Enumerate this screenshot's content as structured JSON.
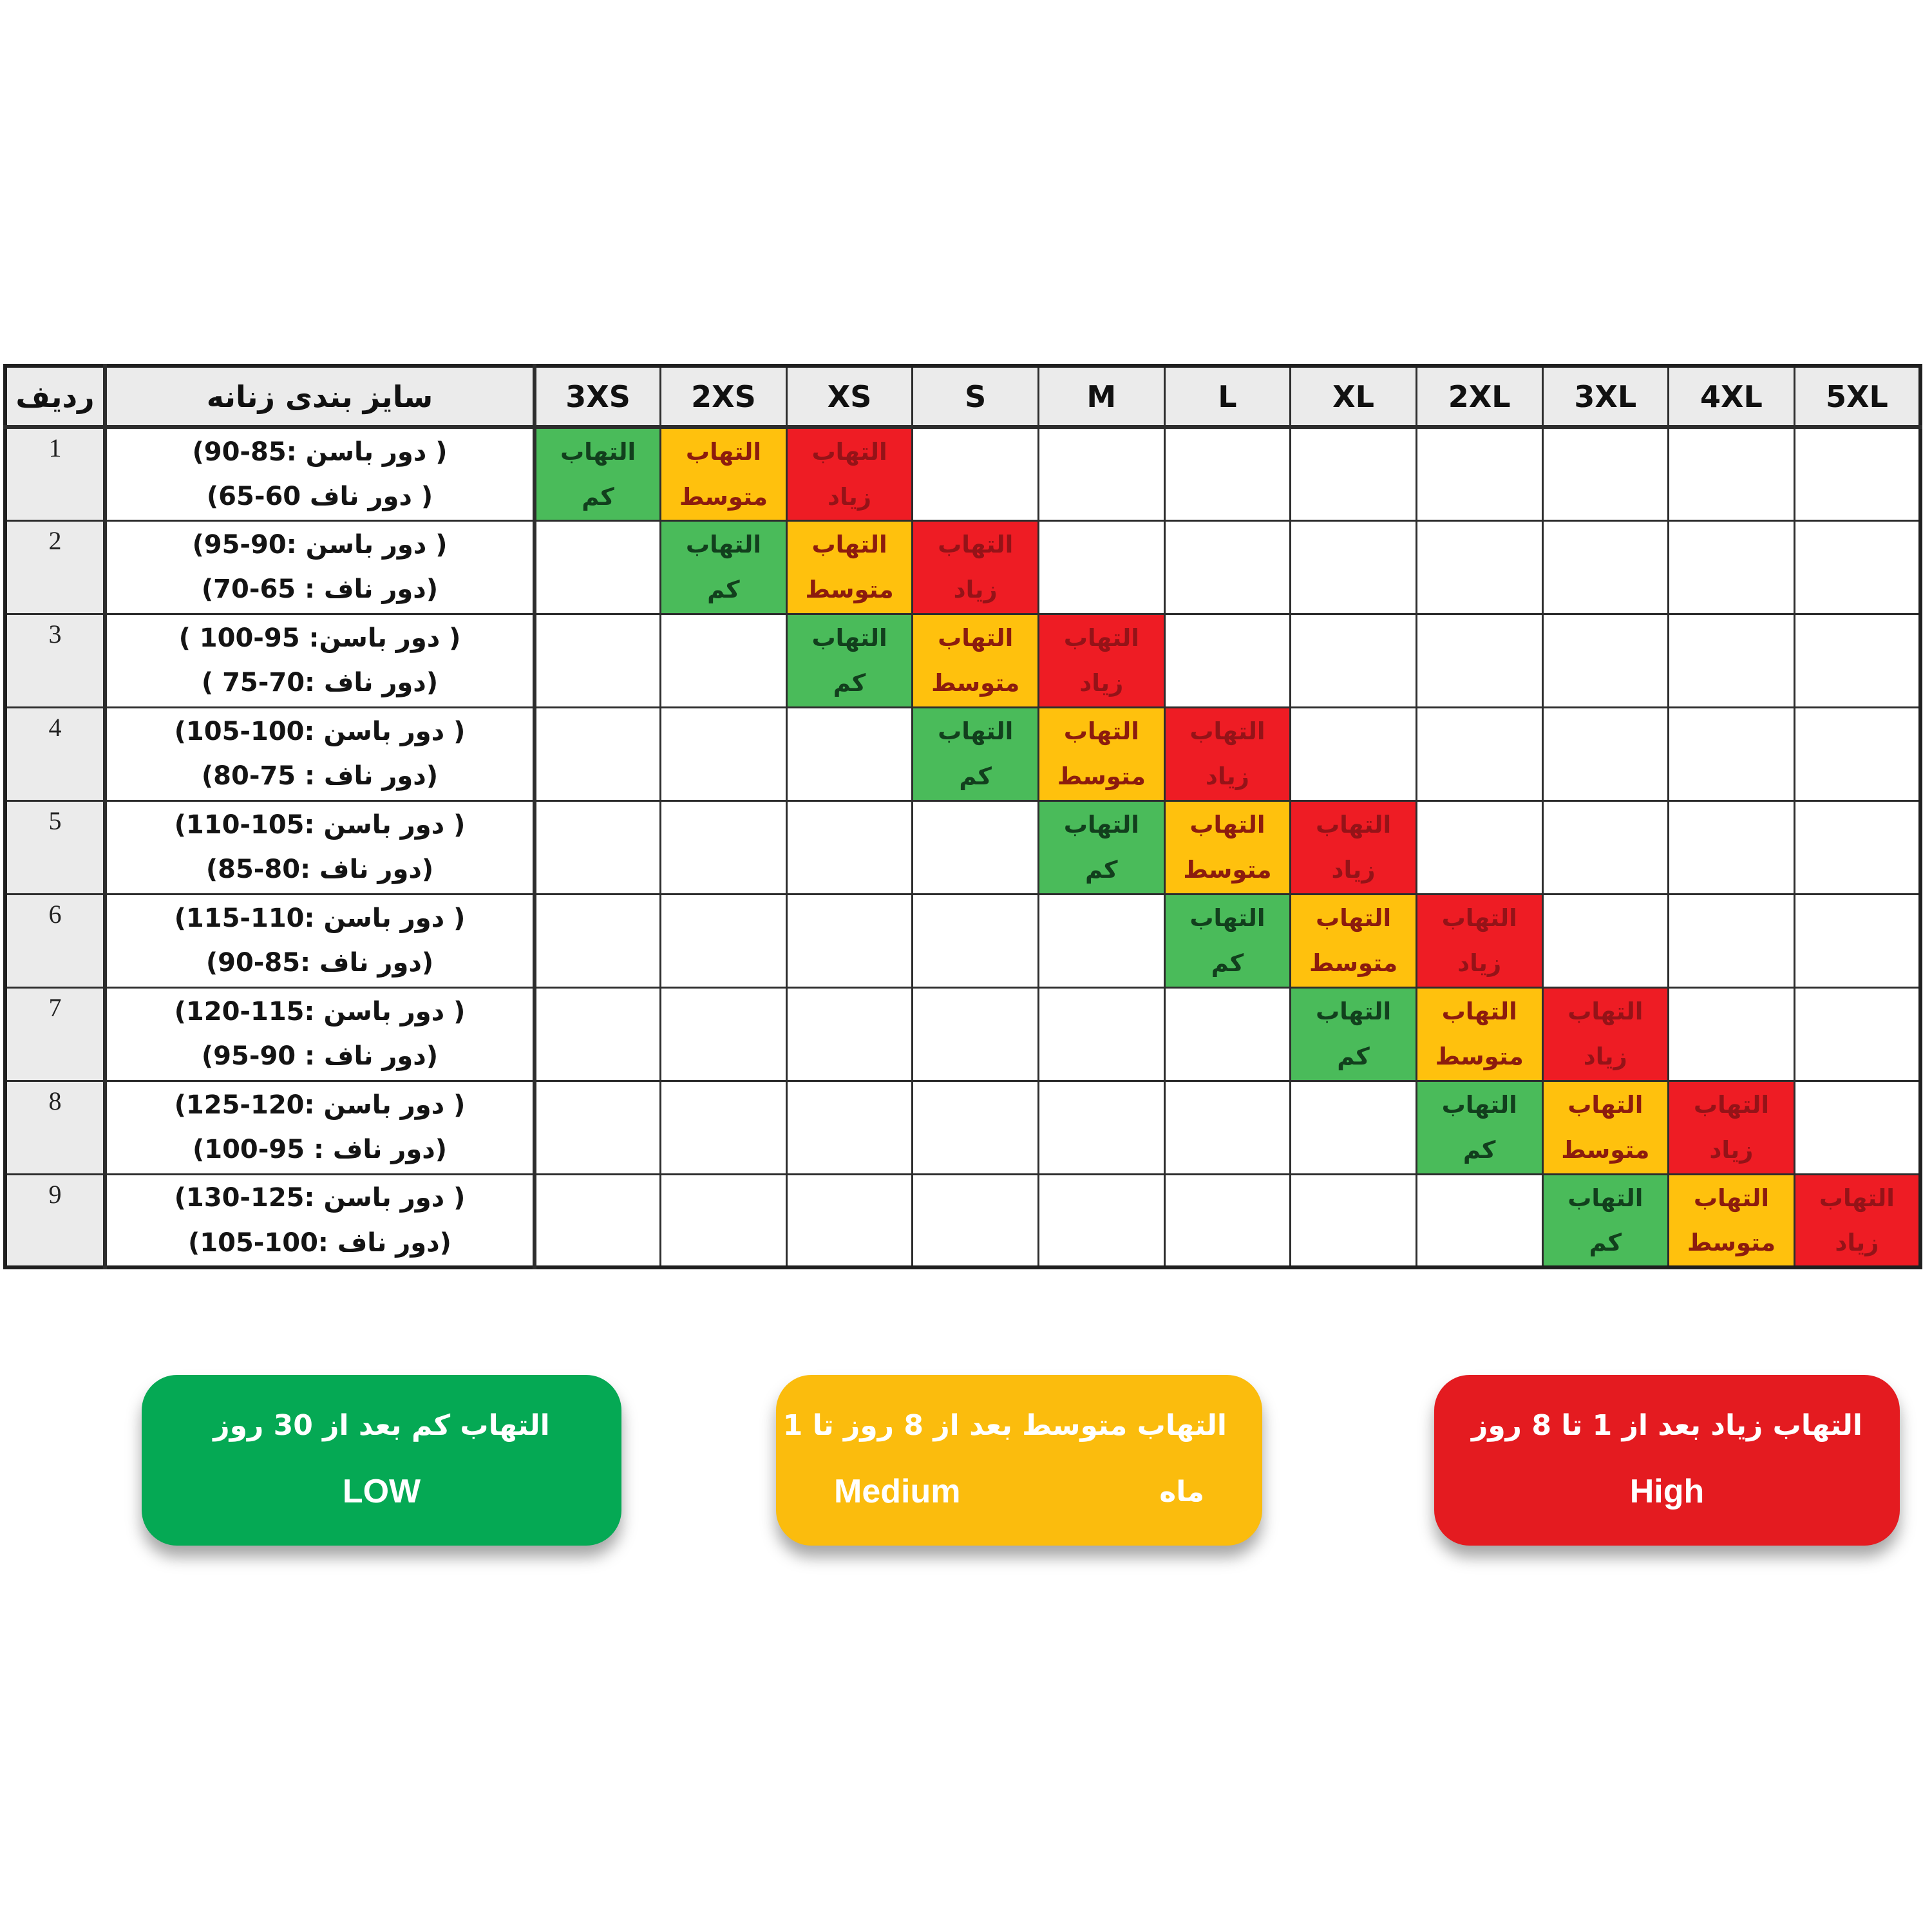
{
  "table": {
    "header": {
      "row_col": "ردیف",
      "desc_col": "سایز بندی زنانه"
    },
    "sizes": [
      "3XS",
      "2XS",
      "XS",
      "S",
      "M",
      "L",
      "XL",
      "2XL",
      "3XL",
      "4XL",
      "5XL"
    ],
    "cell_labels": {
      "low": [
        "التهاب",
        "کم"
      ],
      "medium": [
        "التهاب",
        "متوسط"
      ],
      "high": [
        "التهاب",
        "زیاد"
      ]
    },
    "rows": [
      {
        "num": "1",
        "hip": "( دور باسن :85-90)",
        "navel": "( دور ناف 60-65)",
        "low": "3XS",
        "medium": "2XS",
        "high": "XS"
      },
      {
        "num": "2",
        "hip": "( دور باسن :90-95)",
        "navel": "(دور ناف : 65-70)",
        "low": "2XS",
        "medium": "XS",
        "high": "S"
      },
      {
        "num": "3",
        "hip": "( دور باسن: 95-100 )",
        "navel": "(دور ناف :70-75 )",
        "low": "XS",
        "medium": "S",
        "high": "M"
      },
      {
        "num": "4",
        "hip": "( دور باسن :100-105)",
        "navel": "(دور ناف : 75-80)",
        "low": "S",
        "medium": "M",
        "high": "L"
      },
      {
        "num": "5",
        "hip": "( دور باسن :105-110)",
        "navel": "(دور ناف :80-85)",
        "low": "M",
        "medium": "L",
        "high": "XL"
      },
      {
        "num": "6",
        "hip": "( دور باسن :110-115)",
        "navel": "(دور ناف :85-90)",
        "low": "L",
        "medium": "XL",
        "high": "2XL"
      },
      {
        "num": "7",
        "hip": "( دور باسن :115-120)",
        "navel": "(دور ناف : 90-95)",
        "low": "XL",
        "medium": "2XL",
        "high": "3XL"
      },
      {
        "num": "8",
        "hip": "( دور باسن :120-125)",
        "navel": "(دور ناف : 95-100)",
        "low": "2XL",
        "medium": "3XL",
        "high": "4XL"
      },
      {
        "num": "9",
        "hip": "( دور باسن :125-130)",
        "navel": "(دور ناف :100-105)",
        "low": "3XL",
        "medium": "4XL",
        "high": "5XL"
      }
    ]
  },
  "legend": {
    "low": {
      "persian": "التهاب کم بعد از 30 روز",
      "english": "LOW",
      "wrap": ""
    },
    "medium": {
      "persian": "التهاب متوسط بعد از 8 روز تا 1",
      "english": "Medium",
      "wrap": "ماه"
    },
    "high": {
      "persian": "التهاب زیاد بعد از 1 تا 8 روز",
      "english": "High",
      "wrap": ""
    }
  },
  "colors": {
    "cell_low": "#4abb5a",
    "cell_medium": "#ffc10d",
    "cell_high": "#ee1c24",
    "legend_low": "#05a954",
    "legend_medium": "#fbbc0d",
    "legend_high": "#e41b20",
    "header_bg": "#ebebeb",
    "border": "#2d2d2d"
  }
}
